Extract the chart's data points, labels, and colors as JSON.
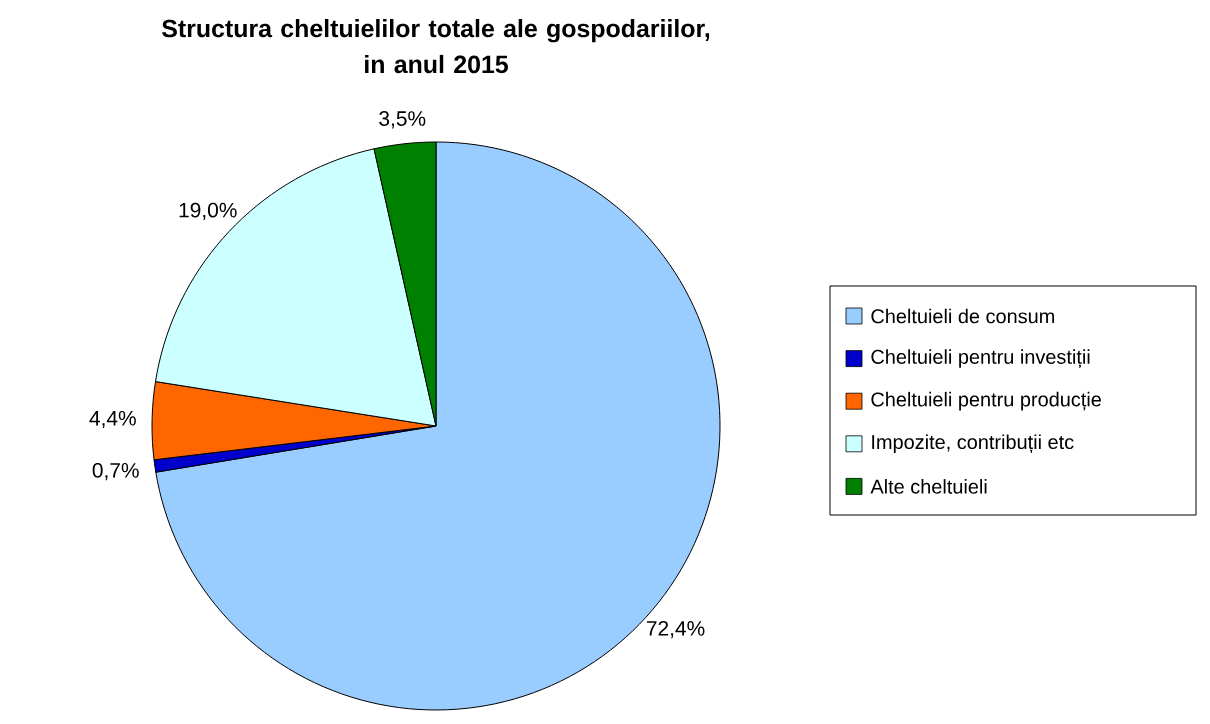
{
  "chart_data": {
    "type": "pie",
    "title": "Structura cheltuielilor totale ale gospodariilor,\nin anul 2015",
    "categories": [
      "Cheltuieli de consum",
      "Cheltuieli pentru investiții",
      "Cheltuieli pentru producție",
      "Impozite, contribuții etc",
      "Alte cheltuieli"
    ],
    "values": [
      72.4,
      0.7,
      4.4,
      19.0,
      3.5
    ],
    "value_labels": [
      "72,4%",
      "0,7%",
      "4,4%",
      "19,0%",
      "3,5%"
    ],
    "colors": [
      "#99ccff",
      "#0000cc",
      "#ff6600",
      "#ccffff",
      "#008000"
    ],
    "legend": "right"
  }
}
